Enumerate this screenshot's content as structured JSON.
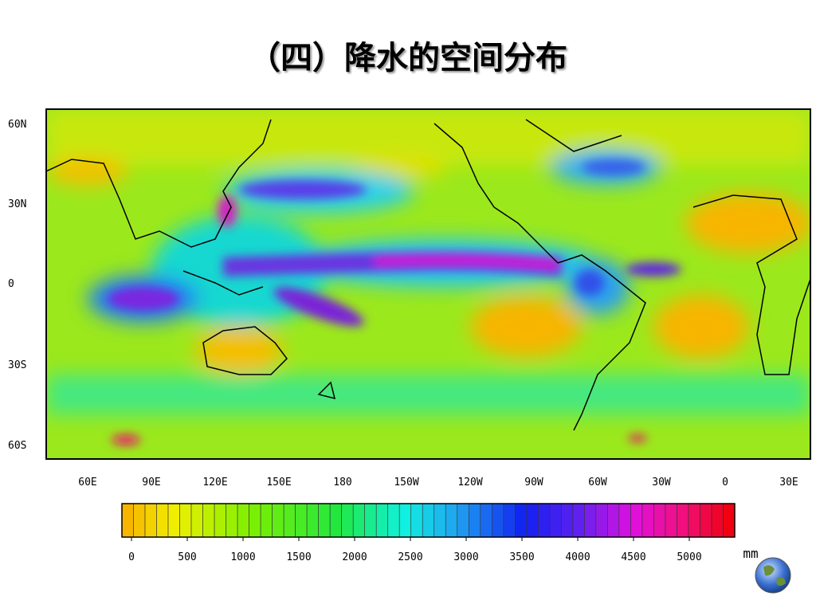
{
  "title": "（四）降水的空间分布",
  "map": {
    "lat_labels": [
      "60N",
      "30N",
      "0",
      "30S",
      "60S"
    ],
    "lon_labels": [
      "60E",
      "90E",
      "120E",
      "150E",
      "180",
      "150W",
      "120W",
      "90W",
      "60W",
      "30W",
      "0",
      "30E"
    ]
  },
  "colorbar": {
    "ticks": [
      0,
      500,
      1000,
      1500,
      2000,
      2500,
      3000,
      3500,
      4000,
      4500,
      5000
    ],
    "unit": "mm"
  }
}
